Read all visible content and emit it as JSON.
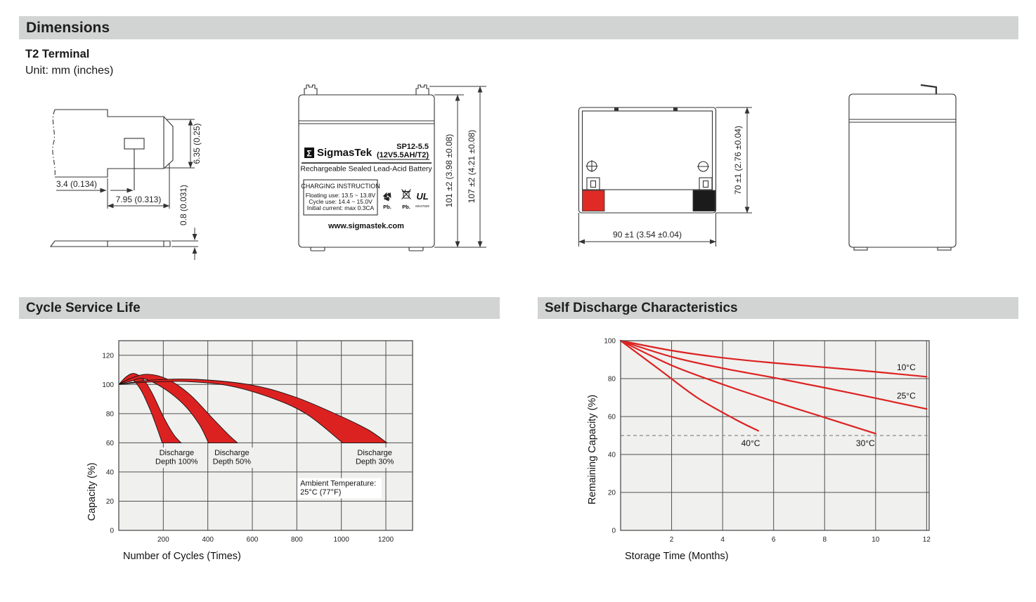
{
  "page": {
    "header_title": "Dimensions",
    "terminal_heading": "T2 Terminal",
    "unit_note": "Unit: mm (inches)",
    "cycle_section_title": "Cycle Service Life",
    "self_discharge_section_title": "Self Discharge Characteristics"
  },
  "drawings": {
    "terminal_detail": {
      "dim_tip_height": "6.35 (0.25)",
      "dim_hole_offset": "3.4 (0.134)",
      "dim_tab_width": "7.95 (0.313)",
      "dim_thickness": "0.8 (0.031)"
    },
    "front_view": {
      "logo_glyph": "Σ",
      "brand": "SigmasTek",
      "model": "SP12-5.5",
      "rating": "(12V5.5AH/T2)",
      "description": "Rechargeable Sealed Lead-Acid Battery",
      "charging_title": "CHARGING INSTRUCTION",
      "charging_lines": [
        "Floating use: 13.5 ~ 13.8V",
        "Cycle use: 14.4 ~ 15.0V",
        "Initial current: max 0.3CA"
      ],
      "pb_recycle_label": "Pb.",
      "pb_bin_label": "Pb.",
      "ul_text": "UL",
      "ul_code": "MH47829",
      "website": "www.sigmastek.com",
      "dim_case_height": "101 ±2 (3.98 ±0.08)",
      "dim_total_height": "107 ±2 (4.21 ±0.08)"
    },
    "top_view": {
      "dim_depth": "70 ±1 (2.76 ±0.04)",
      "dim_width": "90 ±1 (3.54 ±0.04)"
    }
  },
  "chart_data": [
    {
      "type": "area",
      "title": "Cycle Service Life",
      "xlabel": "Number of Cycles (Times)",
      "ylabel": "Capacity (%)",
      "xlim": [
        0,
        1320
      ],
      "ylim": [
        0,
        130
      ],
      "xticks": [
        200,
        400,
        600,
        800,
        1000,
        1200
      ],
      "yticks": [
        0,
        20,
        40,
        60,
        80,
        100,
        120
      ],
      "grid": true,
      "bands": [
        {
          "name": "Discharge Depth 100%",
          "upper": [
            [
              0,
              100
            ],
            [
              35,
              105.5
            ],
            [
              70,
              107.5
            ],
            [
              110,
              103.5
            ],
            [
              150,
              94
            ],
            [
              200,
              78
            ],
            [
              245,
              66
            ],
            [
              280,
              60
            ]
          ],
          "lower": [
            [
              0,
              100
            ],
            [
              30,
              102.5
            ],
            [
              60,
              103.5
            ],
            [
              100,
              96
            ],
            [
              140,
              83
            ],
            [
              172,
              70
            ],
            [
              195,
              60
            ]
          ]
        },
        {
          "name": "Discharge Depth 50%",
          "upper": [
            [
              0,
              100
            ],
            [
              60,
              104.5
            ],
            [
              130,
              107
            ],
            [
              220,
              103.5
            ],
            [
              320,
              93
            ],
            [
              420,
              77
            ],
            [
              490,
              66
            ],
            [
              533,
              60
            ]
          ],
          "lower": [
            [
              0,
              100
            ],
            [
              50,
              102
            ],
            [
              110,
              104
            ],
            [
              200,
              97.5
            ],
            [
              290,
              86.5
            ],
            [
              360,
              73
            ],
            [
              403,
              60
            ]
          ]
        },
        {
          "name": "Discharge Depth 30%",
          "upper": [
            [
              0,
              100
            ],
            [
              150,
              103
            ],
            [
              350,
              103.5
            ],
            [
              600,
              99.5
            ],
            [
              800,
              91
            ],
            [
              1000,
              78
            ],
            [
              1120,
              69
            ],
            [
              1205,
              60
            ]
          ],
          "lower": [
            [
              0,
              100
            ],
            [
              120,
              101.5
            ],
            [
              300,
              102
            ],
            [
              500,
              99
            ],
            [
              700,
              90
            ],
            [
              850,
              79
            ],
            [
              1005,
              60
            ]
          ]
        }
      ],
      "annotations": [
        {
          "lines": [
            "Discharge",
            "Depth 100%"
          ],
          "x": 260,
          "y": 51.5,
          "align": "middle",
          "box": "bg"
        },
        {
          "lines": [
            "Discharge",
            "Depth 50%"
          ],
          "x": 508,
          "y": 51.5,
          "align": "middle",
          "box": "bg"
        },
        {
          "lines": [
            "Discharge",
            "Depth 30%"
          ],
          "x": 1150,
          "y": 51.5,
          "align": "middle",
          "box": "bg"
        },
        {
          "lines": [
            "Ambient Temperature:",
            "25°C (77°F)"
          ],
          "x": 815,
          "y": 30.5,
          "align": "start",
          "box": "white"
        }
      ]
    },
    {
      "type": "line",
      "title": "Self Discharge Characteristics",
      "xlabel": "Storage Time (Months)",
      "ylabel": "Remaining Capacity (%)",
      "xlim": [
        0,
        12.1
      ],
      "ylim": [
        0,
        100
      ],
      "xticks": [
        2,
        4,
        6,
        8,
        10,
        12
      ],
      "yticks": [
        0,
        20,
        40,
        60,
        80,
        100
      ],
      "grid": true,
      "reference_line": {
        "y": 50,
        "style": "dashed"
      },
      "series": [
        {
          "name": "10°C",
          "points": [
            [
              0,
              100
            ],
            [
              2,
              94.8
            ],
            [
              4,
              91
            ],
            [
              6,
              88.3
            ],
            [
              9,
              84.8
            ],
            [
              12,
              81
            ]
          ],
          "label": {
            "x": 11.2,
            "y": 84.5,
            "align": "middle"
          }
        },
        {
          "name": "25°C",
          "points": [
            [
              0,
              100
            ],
            [
              2,
              91.5
            ],
            [
              4,
              85.5
            ],
            [
              6,
              80.5
            ],
            [
              9,
              72.5
            ],
            [
              12,
              64
            ]
          ],
          "label": {
            "x": 11.2,
            "y": 69.5,
            "align": "middle"
          }
        },
        {
          "name": "30°C",
          "points": [
            [
              0,
              100
            ],
            [
              2,
              87
            ],
            [
              4,
              77
            ],
            [
              6,
              68
            ],
            [
              8,
              59.5
            ],
            [
              10,
              51
            ]
          ],
          "label": {
            "x": 9.6,
            "y": 44.5,
            "align": "middle"
          }
        },
        {
          "name": "40°C",
          "points": [
            [
              0,
              100
            ],
            [
              1.5,
              85
            ],
            [
              3,
              70
            ],
            [
              4.5,
              58.5
            ],
            [
              5.4,
              52.5
            ]
          ],
          "label": {
            "x": 5.1,
            "y": 44.5,
            "align": "middle"
          }
        }
      ]
    }
  ],
  "colors": {
    "section_bar": "#d2d3d3",
    "text": "#1a1a1a",
    "plot_bg": "#f0f0ee",
    "grid": "#4f4f4f",
    "red": "#dc2221",
    "dashed": "#9b9b9b",
    "terminal_positive": "#e02a25",
    "terminal_negative": "#1b1b1b"
  }
}
